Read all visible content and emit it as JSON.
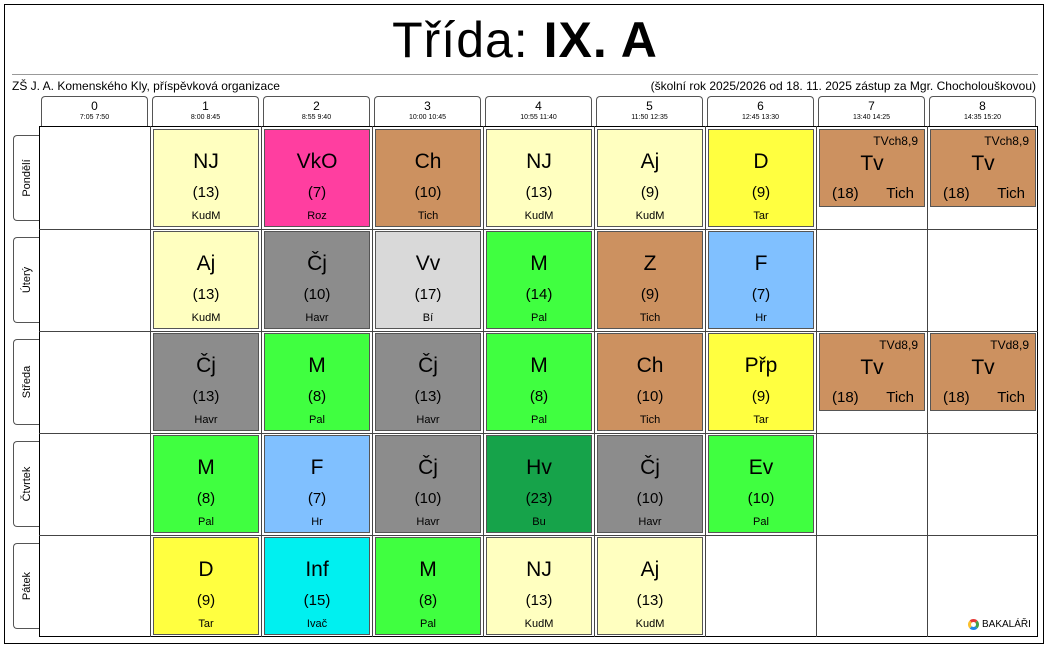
{
  "header": {
    "title_prefix": "Třída: ",
    "title_class": "IX. A",
    "school": "ZŠ J. A. Komenského Kly, příspěvková organizace",
    "info": "(školní rok 2025/2026 od 18. 11. 2025 zástup za Mgr. Chocholouškovou)"
  },
  "periods": [
    {
      "num": "0",
      "time": "7:05  7:50"
    },
    {
      "num": "1",
      "time": "8:00  8:45"
    },
    {
      "num": "2",
      "time": "8:55  9:40"
    },
    {
      "num": "3",
      "time": "10:00 10:45"
    },
    {
      "num": "4",
      "time": "10:55 11:40"
    },
    {
      "num": "5",
      "time": "11:50 12:35"
    },
    {
      "num": "6",
      "time": "12:45 13:30"
    },
    {
      "num": "7",
      "time": "13:40 14:25"
    },
    {
      "num": "8",
      "time": "14:35 15:20"
    }
  ],
  "days": [
    "Pondělí",
    "Úterý",
    "Středa",
    "Čtvrtek",
    "Pátek"
  ],
  "lessons": {
    "mon": [
      {
        "subject": "NJ",
        "room": "(13)",
        "teacher": "KudM",
        "color": "#ffffc0"
      },
      {
        "subject": "VkO",
        "room": "(7)",
        "teacher": "Roz",
        "color": "#ff3ea0"
      },
      {
        "subject": "Ch",
        "room": "(10)",
        "teacher": "Tich",
        "color": "#cc9160"
      },
      {
        "subject": "NJ",
        "room": "(13)",
        "teacher": "KudM",
        "color": "#ffffc0"
      },
      {
        "subject": "Aj",
        "room": "(9)",
        "teacher": "KudM",
        "color": "#ffffc0"
      },
      {
        "subject": "D",
        "room": "(9)",
        "teacher": "Tar",
        "color": "#ffff40"
      },
      {
        "group": "TVch8,9",
        "subject": "Tv",
        "room": "(18)",
        "teacher": "Tich",
        "color": "#cc9160"
      },
      {
        "group": "TVch8,9",
        "subject": "Tv",
        "room": "(18)",
        "teacher": "Tich",
        "color": "#cc9160"
      }
    ],
    "tue": [
      {
        "subject": "Aj",
        "room": "(13)",
        "teacher": "KudM",
        "color": "#ffffc0"
      },
      {
        "subject": "Čj",
        "room": "(10)",
        "teacher": "Havr",
        "color": "#8c8c8c"
      },
      {
        "subject": "Vv",
        "room": "(17)",
        "teacher": "Bí",
        "color": "#d9d9d9"
      },
      {
        "subject": "M",
        "room": "(14)",
        "teacher": "Pal",
        "color": "#40ff40"
      },
      {
        "subject": "Z",
        "room": "(9)",
        "teacher": "Tich",
        "color": "#cc9160"
      },
      {
        "subject": "F",
        "room": "(7)",
        "teacher": "Hr",
        "color": "#80c0ff"
      }
    ],
    "wed": [
      {
        "subject": "Čj",
        "room": "(13)",
        "teacher": "Havr",
        "color": "#8c8c8c"
      },
      {
        "subject": "M",
        "room": "(8)",
        "teacher": "Pal",
        "color": "#40ff40"
      },
      {
        "subject": "Čj",
        "room": "(13)",
        "teacher": "Havr",
        "color": "#8c8c8c"
      },
      {
        "subject": "M",
        "room": "(8)",
        "teacher": "Pal",
        "color": "#40ff40"
      },
      {
        "subject": "Ch",
        "room": "(10)",
        "teacher": "Tich",
        "color": "#cc9160"
      },
      {
        "subject": "Přp",
        "room": "(9)",
        "teacher": "Tar",
        "color": "#ffff40"
      },
      {
        "group": "TVd8,9",
        "subject": "Tv",
        "room": "(18)",
        "teacher": "Tich",
        "color": "#cc9160"
      },
      {
        "group": "TVd8,9",
        "subject": "Tv",
        "room": "(18)",
        "teacher": "Tich",
        "color": "#cc9160"
      }
    ],
    "thu": [
      {
        "subject": "M",
        "room": "(8)",
        "teacher": "Pal",
        "color": "#40ff40"
      },
      {
        "subject": "F",
        "room": "(7)",
        "teacher": "Hr",
        "color": "#80c0ff"
      },
      {
        "subject": "Čj",
        "room": "(10)",
        "teacher": "Havr",
        "color": "#8c8c8c"
      },
      {
        "subject": "Hv",
        "room": "(23)",
        "teacher": "Bu",
        "color": "#16a34a"
      },
      {
        "subject": "Čj",
        "room": "(10)",
        "teacher": "Havr",
        "color": "#8c8c8c"
      },
      {
        "subject": "Ev",
        "room": "(10)",
        "teacher": "Pal",
        "color": "#40ff40"
      }
    ],
    "fri": [
      {
        "subject": "D",
        "room": "(9)",
        "teacher": "Tar",
        "color": "#ffff40"
      },
      {
        "subject": "Inf",
        "room": "(15)",
        "teacher": "Ivač",
        "color": "#00f0f0"
      },
      {
        "subject": "M",
        "room": "(8)",
        "teacher": "Pal",
        "color": "#40ff40"
      },
      {
        "subject": "NJ",
        "room": "(13)",
        "teacher": "KudM",
        "color": "#ffffc0"
      },
      {
        "subject": "Aj",
        "room": "(13)",
        "teacher": "KudM",
        "color": "#ffffc0"
      }
    ]
  },
  "logo": {
    "text": "BAKALÁŘI",
    "icon": "bakalari-logo-icon"
  }
}
